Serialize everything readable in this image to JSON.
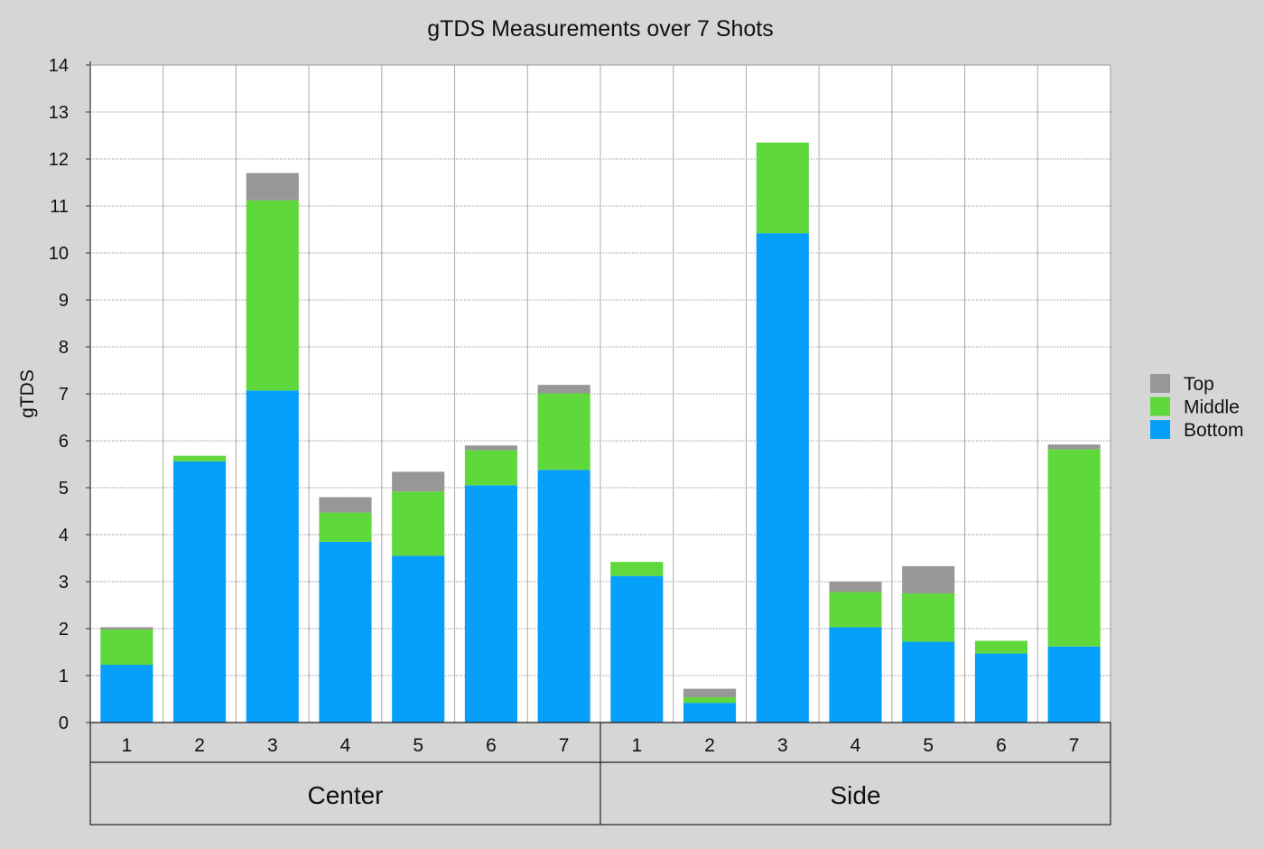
{
  "chart_data": {
    "type": "bar",
    "stacked": true,
    "title": "gTDS Measurements over 7 Shots",
    "ylabel": "gTDS",
    "xlabel": "",
    "ylim": [
      0,
      14
    ],
    "yticks": [
      0,
      1,
      2,
      3,
      4,
      5,
      6,
      7,
      8,
      9,
      10,
      11,
      12,
      13,
      14
    ],
    "grid": true,
    "legend_position": "right",
    "groups": [
      {
        "label": "Center",
        "categories": [
          "1",
          "2",
          "3",
          "4",
          "5",
          "6",
          "7"
        ]
      },
      {
        "label": "Side",
        "categories": [
          "1",
          "2",
          "3",
          "4",
          "5",
          "6",
          "7"
        ]
      }
    ],
    "series": [
      {
        "name": "Bottom",
        "color": "#069ffc",
        "values": [
          1.23,
          5.56,
          7.07,
          3.85,
          3.55,
          5.05,
          5.38,
          3.12,
          0.42,
          10.42,
          2.03,
          1.72,
          1.47,
          1.62
        ]
      },
      {
        "name": "Middle",
        "color": "#5ed83a",
        "values": [
          0.75,
          0.12,
          4.05,
          0.62,
          1.37,
          0.75,
          1.63,
          0.3,
          0.12,
          1.93,
          0.75,
          1.03,
          0.27,
          4.2
        ]
      },
      {
        "name": "Top",
        "color": "#979797",
        "values": [
          0.05,
          0.0,
          0.58,
          0.33,
          0.42,
          0.1,
          0.18,
          0.0,
          0.18,
          0.0,
          0.22,
          0.58,
          0.0,
          0.1
        ]
      }
    ],
    "legend_order": [
      "Top",
      "Middle",
      "Bottom"
    ]
  }
}
